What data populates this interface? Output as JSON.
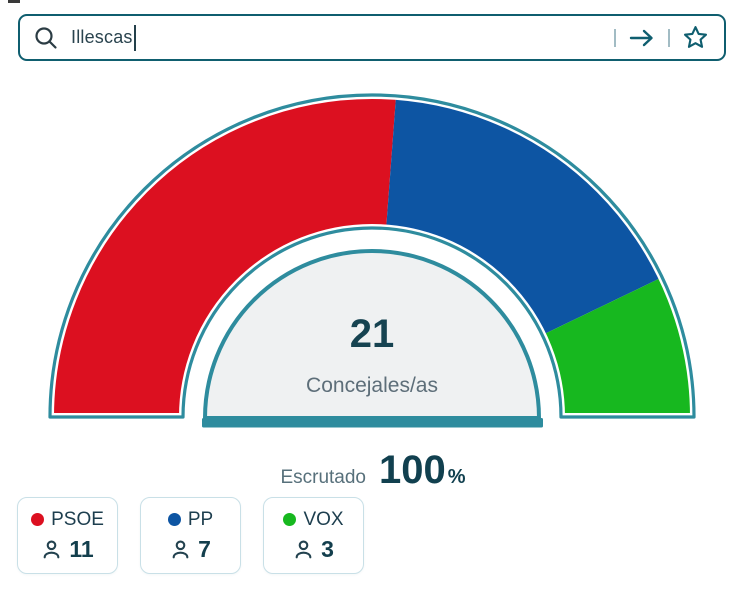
{
  "search": {
    "value": "Illescas",
    "icon": "magnifier",
    "submit_icon": "arrow-right",
    "favorite_icon": "star-outline"
  },
  "chart_data": {
    "type": "pie",
    "variant": "half-donut-gauge",
    "angle_span_degrees": 180,
    "total_seats": 21,
    "center": {
      "value": "21",
      "label": "Concejales/as"
    },
    "series": [
      {
        "name": "PSOE",
        "seats": 11,
        "color": "#dc1020"
      },
      {
        "name": "PP",
        "seats": 7,
        "color": "#0d55a3"
      },
      {
        "name": "VOX",
        "seats": 3,
        "color": "#17b81f"
      }
    ],
    "scrutiny": {
      "label": "Escrutado",
      "value": "100",
      "unit": "%"
    },
    "legend_position": "bottom-left",
    "grid": false
  },
  "colors": {
    "gauge_outline": "#2e8c9e",
    "inner_disc_fill": "#eff1f2",
    "search_border": "#0f5e6f",
    "dark_text": "#11404f",
    "muted_text": "#5d6e79",
    "card_border": "#c9e0e7"
  }
}
